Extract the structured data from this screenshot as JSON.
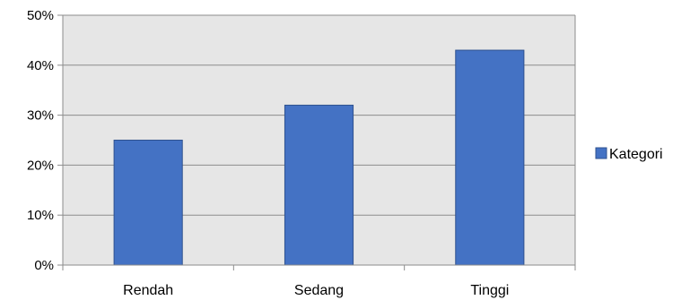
{
  "chart_data": {
    "type": "bar",
    "categories": [
      "Rendah",
      "Sedang",
      "Tinggi"
    ],
    "series": [
      {
        "name": "Kategori",
        "values": [
          25,
          32,
          43
        ]
      }
    ],
    "title": "",
    "xlabel": "",
    "ylabel": "",
    "ylim": [
      0,
      50
    ],
    "yticks": [
      0,
      10,
      20,
      30,
      40,
      50
    ],
    "ytick_labels": [
      "0%",
      "10%",
      "20%",
      "30%",
      "40%",
      "50%"
    ],
    "grid": true,
    "legend_position": "right",
    "colors": {
      "bar": "#4472C4",
      "bar_edge": "#2F528F",
      "plot_background": "#E6E6E6",
      "gridline": "#8C8C8C",
      "axis": "#8C8C8C"
    }
  }
}
